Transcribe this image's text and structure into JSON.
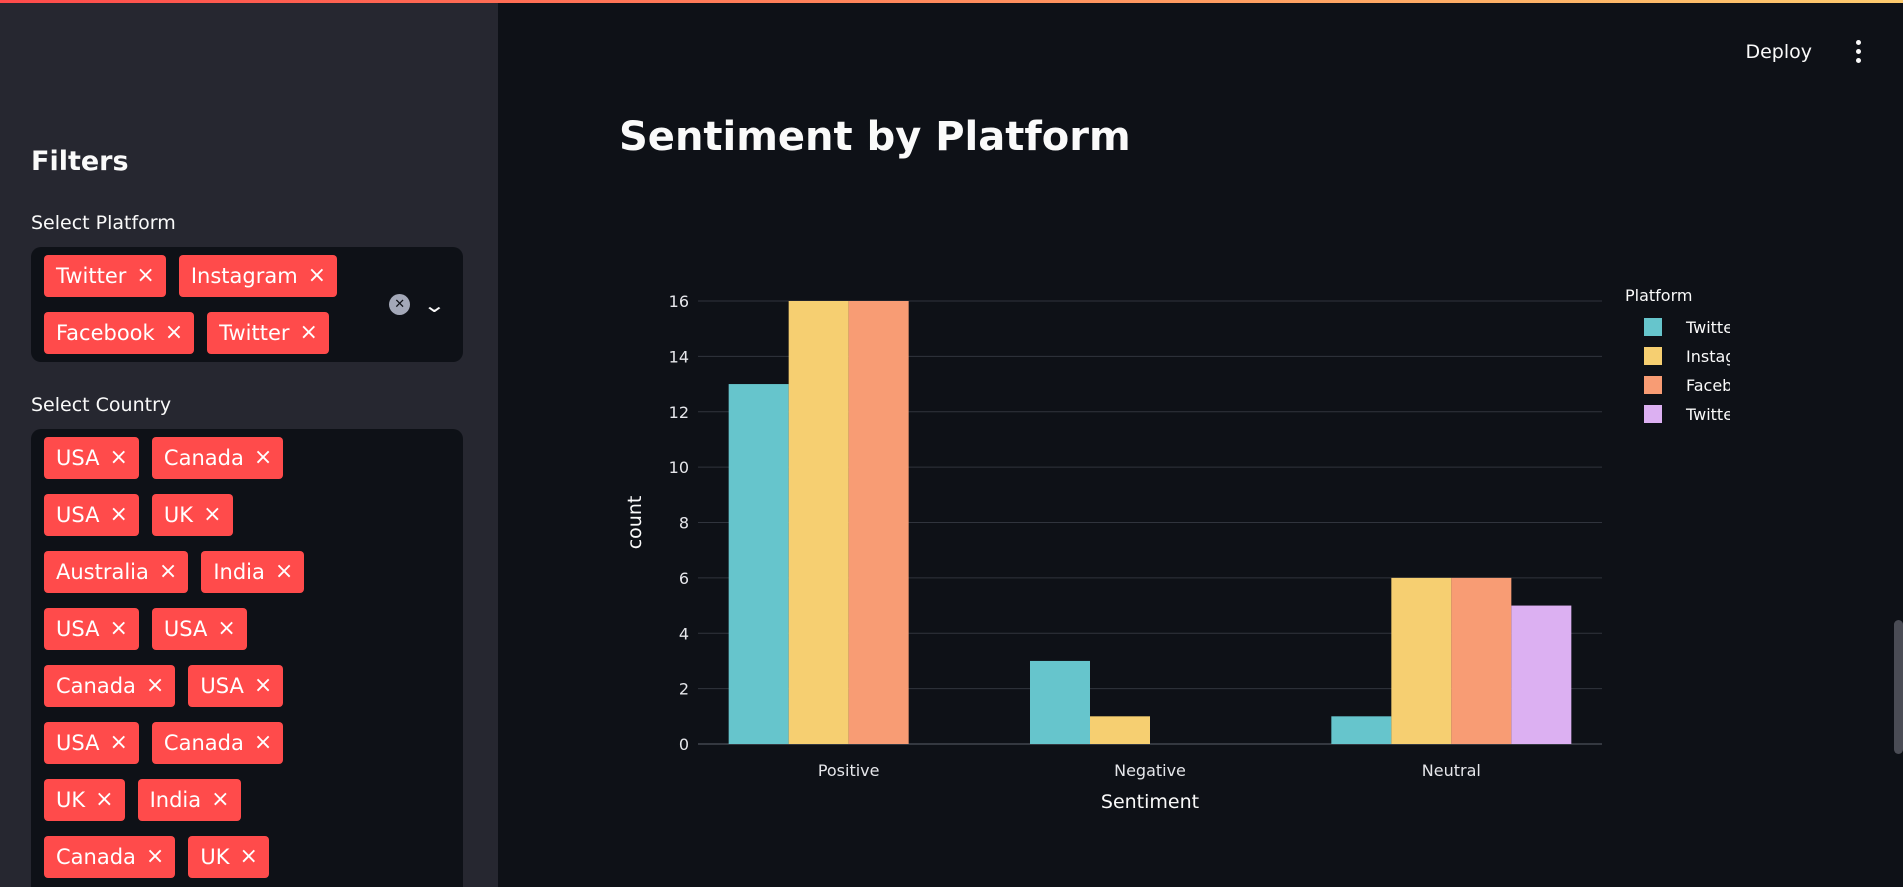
{
  "header": {
    "deploy_label": "Deploy"
  },
  "sidebar": {
    "title": "Filters",
    "platform_filter": {
      "label": "Select Platform",
      "selected": [
        "Twitter",
        "Instagram",
        "Facebook",
        "Twitter"
      ]
    },
    "country_filter": {
      "label": "Select Country",
      "selected": [
        "USA",
        "Canada",
        "USA",
        "UK",
        "Australia",
        "India",
        "USA",
        "USA",
        "Canada",
        "USA",
        "USA",
        "Canada",
        "UK",
        "India",
        "Canada",
        "UK"
      ]
    }
  },
  "main": {
    "title": "Sentiment by Platform"
  },
  "chart_data": {
    "type": "bar",
    "categories": [
      "Positive",
      "Negative",
      "Neutral"
    ],
    "series": [
      {
        "name": "Twitter",
        "values": [
          13,
          3,
          1
        ],
        "color": "#66c5cc"
      },
      {
        "name": "Instagram",
        "values": [
          16,
          1,
          6
        ],
        "color": "#f6cf71"
      },
      {
        "name": "Facebook",
        "values": [
          16,
          0,
          6
        ],
        "color": "#f89c74"
      },
      {
        "name": "Twitter",
        "values": [
          0,
          0,
          5
        ],
        "color": "#dcb0f2"
      }
    ],
    "xlabel": "Sentiment",
    "ylabel": "count",
    "ylim": [
      0,
      16
    ],
    "yticks": [
      0,
      2,
      4,
      6,
      8,
      10,
      12,
      14,
      16
    ],
    "legend_title": "Platform",
    "legend_position": "top-right",
    "grid": true
  }
}
